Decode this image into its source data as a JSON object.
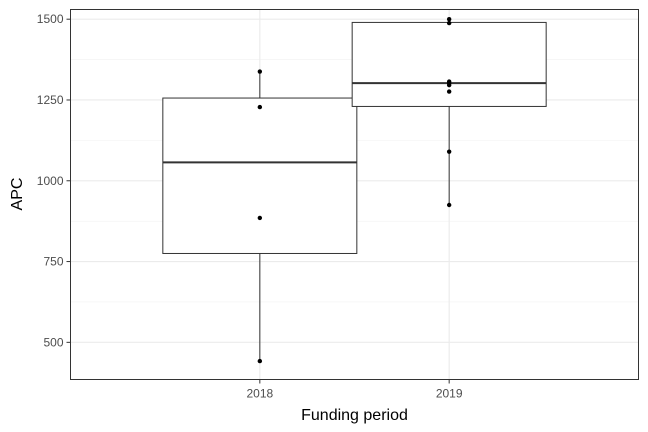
{
  "chart_data": {
    "type": "box",
    "xlabel": "Funding period",
    "ylabel": "APC",
    "categories": [
      "2018",
      "2019"
    ],
    "ylim": [
      385,
      1530
    ],
    "yticks": [
      500,
      750,
      1000,
      1250,
      1500
    ],
    "grid": true,
    "boxes": [
      {
        "category": "2018",
        "whisker_low": 442,
        "q1": 775,
        "median": 1057,
        "q3": 1256,
        "whisker_high": 1338,
        "points": [
          442,
          885,
          1228,
          1338
        ]
      },
      {
        "category": "2019",
        "whisker_low": 925,
        "q1": 1230,
        "median": 1302,
        "q3": 1490,
        "whisker_high": 1500,
        "points": [
          925,
          1090,
          1276,
          1296,
          1302,
          1307,
          1488,
          1500
        ]
      }
    ]
  }
}
